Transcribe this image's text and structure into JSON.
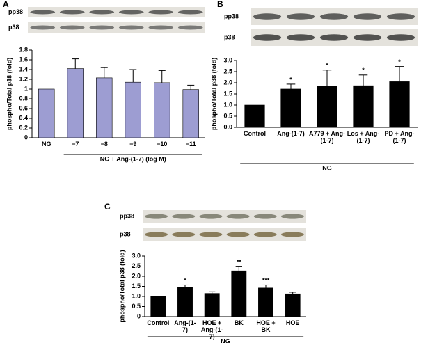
{
  "chart_data": [
    {
      "type": "bar",
      "panel": "A",
      "blot_labels": [
        "pp38",
        "p38"
      ],
      "ylabel": "phospho/Total p38 (fold)",
      "categories": [
        "NG",
        "−7",
        "−8",
        "−9",
        "−10",
        "−11"
      ],
      "values": [
        1.0,
        1.42,
        1.23,
        1.14,
        1.13,
        0.99
      ],
      "errors": [
        null,
        0.2,
        0.21,
        0.26,
        0.25,
        0.09
      ],
      "color": "#9d9dd2",
      "ylim": [
        0,
        1.8
      ],
      "yticks": [
        0,
        0.2,
        0.4,
        0.6,
        0.8,
        1,
        1.2,
        1.4,
        1.6,
        1.8
      ],
      "group_label": "NG + Ang-(1-7) (log M)"
    },
    {
      "type": "bar",
      "panel": "B",
      "blot_labels": [
        "pp38",
        "p38"
      ],
      "ylabel": "phospho/Total p38 (fold)",
      "categories": [
        "Control",
        "Ang-(1-7)",
        "A779 + Ang-(1-7)",
        "Los + Ang-(1-7)",
        "PD + Ang-(1-7)"
      ],
      "values": [
        1.0,
        1.72,
        1.85,
        1.87,
        2.05
      ],
      "errors": [
        null,
        0.22,
        0.72,
        0.48,
        0.68
      ],
      "annotations": [
        null,
        "*",
        "*",
        "*",
        "*"
      ],
      "color": "#000000",
      "ylim": [
        0,
        3.0
      ],
      "yticks": [
        {
          "value": 0,
          "label": "0.0"
        },
        0.5,
        {
          "value": 1,
          "label": "1.0"
        },
        1.5,
        {
          "value": 2,
          "label": "2.0"
        },
        2.5,
        {
          "value": 3,
          "label": "3.0"
        }
      ],
      "group_label": "NG"
    },
    {
      "type": "bar",
      "panel": "C",
      "blot_labels": [
        "pp38",
        "p38"
      ],
      "ylabel": "phospho/Total p38 (fold)",
      "categories": [
        "Control",
        "Ang-(1-7)",
        "HOE + Ang-(1-7)",
        "BK",
        "HOE + BK",
        "HOE"
      ],
      "values": [
        1.0,
        1.47,
        1.15,
        2.27,
        1.42,
        1.13
      ],
      "errors": [
        null,
        0.1,
        0.08,
        0.2,
        0.15,
        0.08
      ],
      "annotations": [
        null,
        "*",
        null,
        "**",
        "***",
        null
      ],
      "color": "#000000",
      "ylim": [
        0,
        3.0
      ],
      "yticks": [
        0,
        0.5,
        {
          "value": 1,
          "label": "1.0"
        },
        1.5,
        {
          "value": 2,
          "label": "2.0"
        },
        2.5,
        {
          "value": 3,
          "label": "3.0"
        }
      ],
      "group_label": "NG"
    }
  ]
}
